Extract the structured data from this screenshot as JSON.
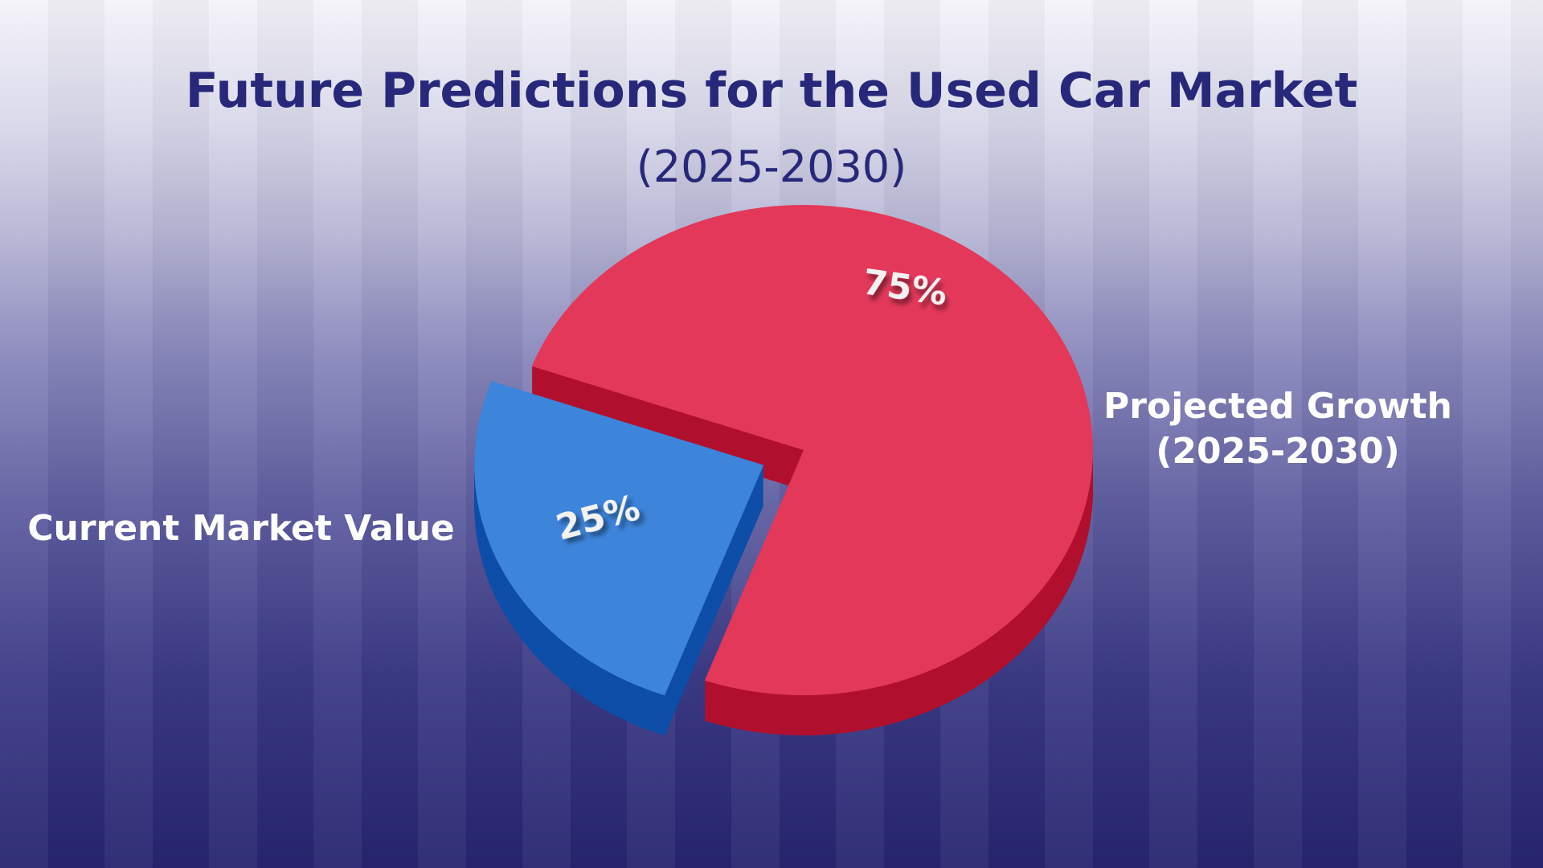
{
  "title": "Future Predictions for the Used Car Market",
  "subtitle": "(2025-2030)",
  "chart_data": {
    "type": "pie",
    "title": "Future Predictions for the Used Car Market",
    "subtitle": "(2025-2030)",
    "three_d": true,
    "slices": [
      {
        "name": "Projected Growth (2025-2030)",
        "line1": "Projected Growth",
        "line2": "(2025-2030)",
        "value": 75,
        "label": "75%",
        "color": "#e3385a",
        "side_color": "#b0102e"
      },
      {
        "name": "Current Market Value",
        "value": 25,
        "label": "25%",
        "color": "#3d84db",
        "side_color": "#0e4ea8",
        "exploded": true
      }
    ]
  }
}
